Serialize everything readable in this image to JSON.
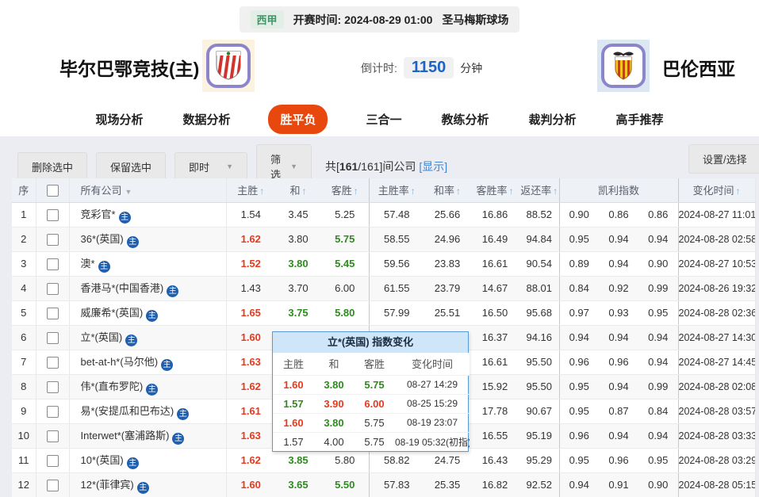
{
  "top_bar": {
    "league": "西甲",
    "kickoff_label": "开赛时间:",
    "kickoff_time": "2024-08-29 01:00",
    "venue": "圣马梅斯球场"
  },
  "match": {
    "home_name": "毕尔巴鄂竞技(主)",
    "away_name": "巴伦西亚",
    "countdown_label": "倒计时:",
    "countdown_value": "1150",
    "countdown_unit": "分钟"
  },
  "tabs": [
    {
      "label": "现场分析",
      "active": false
    },
    {
      "label": "数据分析",
      "active": false
    },
    {
      "label": "胜平负",
      "active": true
    },
    {
      "label": "三合一",
      "active": false
    },
    {
      "label": "教练分析",
      "active": false
    },
    {
      "label": "裁判分析",
      "active": false
    },
    {
      "label": "高手推荐",
      "active": false
    }
  ],
  "toolbar": {
    "delete_button": "删除选中",
    "keep_button": "保留选中",
    "time_dropdown": "即时",
    "filter_dropdown": "筛选",
    "summary_prefix": "共[",
    "summary_count": "161",
    "summary_suffix": "/161]间公司",
    "show_link": "[显示]",
    "settings_button": "设置/选择"
  },
  "icons": {
    "home_mark": "主",
    "sort_up": "↑",
    "dropdown": "▼"
  },
  "table": {
    "headers": {
      "no": "序",
      "company": "所有公司",
      "home": "主胜",
      "draw": "和",
      "away": "客胜",
      "home_rate": "主胜率",
      "draw_rate": "和率",
      "away_rate": "客胜率",
      "return_rate": "返还率",
      "kelly": "凯利指数",
      "time": "变化时间"
    },
    "rows": [
      {
        "no": "1",
        "company": "竞彩官*",
        "home": {
          "v": "1.54",
          "c": "k"
        },
        "draw": {
          "v": "3.45",
          "c": "k"
        },
        "away": {
          "v": "5.25",
          "c": "k"
        },
        "home_rate": "57.48",
        "draw_rate": "25.66",
        "away_rate": "16.86",
        "return_rate": "88.52",
        "kelly": [
          "0.90",
          "0.86",
          "0.86"
        ],
        "time": "2024-08-27 11:01"
      },
      {
        "no": "2",
        "company": "36*(英国)",
        "home": {
          "v": "1.62",
          "c": "r"
        },
        "draw": {
          "v": "3.80",
          "c": "k"
        },
        "away": {
          "v": "5.75",
          "c": "g"
        },
        "home_rate": "58.55",
        "draw_rate": "24.96",
        "away_rate": "16.49",
        "return_rate": "94.84",
        "kelly": [
          "0.95",
          "0.94",
          "0.94"
        ],
        "time": "2024-08-28 02:58"
      },
      {
        "no": "3",
        "company": "澳*",
        "home": {
          "v": "1.52",
          "c": "r"
        },
        "draw": {
          "v": "3.80",
          "c": "g"
        },
        "away": {
          "v": "5.45",
          "c": "g"
        },
        "home_rate": "59.56",
        "draw_rate": "23.83",
        "away_rate": "16.61",
        "return_rate": "90.54",
        "kelly": [
          "0.89",
          "0.94",
          "0.90"
        ],
        "time": "2024-08-27 10:53"
      },
      {
        "no": "4",
        "company": "香港马*(中国香港)",
        "home": {
          "v": "1.43",
          "c": "k"
        },
        "draw": {
          "v": "3.70",
          "c": "k"
        },
        "away": {
          "v": "6.00",
          "c": "k"
        },
        "home_rate": "61.55",
        "draw_rate": "23.79",
        "away_rate": "14.67",
        "return_rate": "88.01",
        "kelly": [
          "0.84",
          "0.92",
          "0.99"
        ],
        "time": "2024-08-26 19:32"
      },
      {
        "no": "5",
        "company": "威廉希*(英国)",
        "home": {
          "v": "1.65",
          "c": "r"
        },
        "draw": {
          "v": "3.75",
          "c": "g"
        },
        "away": {
          "v": "5.80",
          "c": "g"
        },
        "home_rate": "57.99",
        "draw_rate": "25.51",
        "away_rate": "16.50",
        "return_rate": "95.68",
        "kelly": [
          "0.97",
          "0.93",
          "0.95"
        ],
        "time": "2024-08-28 02:36"
      },
      {
        "no": "6",
        "company": "立*(英国)",
        "home": {
          "v": "1.60",
          "c": "r"
        },
        "draw": {
          "v": "",
          "c": "k"
        },
        "away": {
          "v": "",
          "c": "k"
        },
        "home_rate": "",
        "draw_rate": "",
        "away_rate": "16.37",
        "return_rate": "94.16",
        "kelly": [
          "0.94",
          "0.94",
          "0.94"
        ],
        "time": "2024-08-27 14:30"
      },
      {
        "no": "7",
        "company": "bet-at-h*(马尔他)",
        "home": {
          "v": "1.63",
          "c": "r"
        },
        "draw": {
          "v": "",
          "c": "k"
        },
        "away": {
          "v": "",
          "c": "k"
        },
        "home_rate": "",
        "draw_rate": "",
        "away_rate": "16.61",
        "return_rate": "95.50",
        "kelly": [
          "0.96",
          "0.96",
          "0.94"
        ],
        "time": "2024-08-27 14:45"
      },
      {
        "no": "8",
        "company": "伟*(直布罗陀)",
        "home": {
          "v": "1.62",
          "c": "r"
        },
        "draw": {
          "v": "",
          "c": "k"
        },
        "away": {
          "v": "",
          "c": "k"
        },
        "home_rate": "",
        "draw_rate": "",
        "away_rate": "15.92",
        "return_rate": "95.50",
        "kelly": [
          "0.95",
          "0.94",
          "0.99"
        ],
        "time": "2024-08-28 02:08"
      },
      {
        "no": "9",
        "company": "易*(安提瓜和巴布达)",
        "home": {
          "v": "1.61",
          "c": "r"
        },
        "draw": {
          "v": "",
          "c": "k"
        },
        "away": {
          "v": "",
          "c": "k"
        },
        "home_rate": "",
        "draw_rate": "",
        "away_rate": "17.78",
        "return_rate": "90.67",
        "kelly": [
          "0.95",
          "0.87",
          "0.84"
        ],
        "time": "2024-08-28 03:57"
      },
      {
        "no": "10",
        "company": "Interwet*(塞浦路斯)",
        "home": {
          "v": "1.63",
          "c": "r"
        },
        "draw": {
          "v": "",
          "c": "k"
        },
        "away": {
          "v": "",
          "c": "k"
        },
        "home_rate": "",
        "draw_rate": "",
        "away_rate": "16.55",
        "return_rate": "95.19",
        "kelly": [
          "0.96",
          "0.94",
          "0.94"
        ],
        "time": "2024-08-28 03:33"
      },
      {
        "no": "11",
        "company": "10*(英国)",
        "home": {
          "v": "1.62",
          "c": "r"
        },
        "draw": {
          "v": "3.85",
          "c": "g"
        },
        "away": {
          "v": "5.80",
          "c": "k"
        },
        "home_rate": "58.82",
        "draw_rate": "24.75",
        "away_rate": "16.43",
        "return_rate": "95.29",
        "kelly": [
          "0.95",
          "0.96",
          "0.95"
        ],
        "time": "2024-08-28 03:29"
      },
      {
        "no": "12",
        "company": "12*(菲律宾)",
        "home": {
          "v": "1.60",
          "c": "r"
        },
        "draw": {
          "v": "3.65",
          "c": "g"
        },
        "away": {
          "v": "5.50",
          "c": "g"
        },
        "home_rate": "57.83",
        "draw_rate": "25.35",
        "away_rate": "16.82",
        "return_rate": "92.52",
        "kelly": [
          "0.94",
          "0.91",
          "0.90"
        ],
        "time": "2024-08-28 05:15"
      }
    ]
  },
  "popup": {
    "title": "立*(英国) 指数变化",
    "headers": {
      "home": "主胜",
      "draw": "和",
      "away": "客胜",
      "time": "变化时间"
    },
    "rows": [
      {
        "home": {
          "v": "1.60",
          "c": "r"
        },
        "draw": {
          "v": "3.80",
          "c": "g"
        },
        "away": {
          "v": "5.75",
          "c": "g"
        },
        "time": "08-27 14:29"
      },
      {
        "home": {
          "v": "1.57",
          "c": "g"
        },
        "draw": {
          "v": "3.90",
          "c": "r"
        },
        "away": {
          "v": "6.00",
          "c": "r"
        },
        "time": "08-25 15:29"
      },
      {
        "home": {
          "v": "1.60",
          "c": "r"
        },
        "draw": {
          "v": "3.80",
          "c": "g"
        },
        "away": {
          "v": "5.75",
          "c": "k"
        },
        "time": "08-19 23:07"
      },
      {
        "home": {
          "v": "1.57",
          "c": "k"
        },
        "draw": {
          "v": "4.00",
          "c": "k"
        },
        "away": {
          "v": "5.75",
          "c": "k"
        },
        "time": "08-19 05:32(初指)"
      }
    ]
  },
  "colors": {
    "up_red": "#e8391d",
    "down_green": "#2e8b1e",
    "accent_orange": "#e8480e",
    "link_blue": "#3f85d6",
    "badge_green": "#3f9468",
    "countdown_blue": "#1b64c8",
    "popup_header_bg": "#cfe6f8",
    "home_mark_blue": "#1f5fae"
  }
}
